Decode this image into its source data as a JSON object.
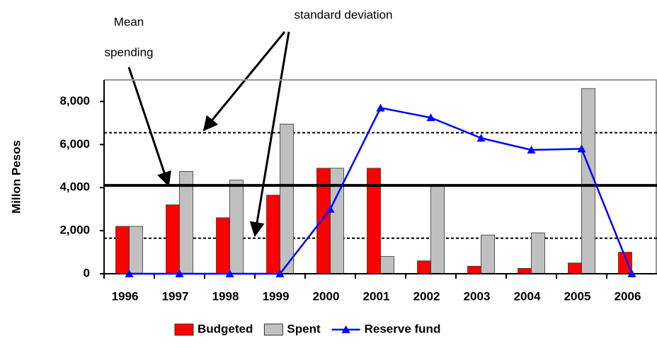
{
  "chart_data": {
    "type": "bar",
    "y_label": "Millon Pesos",
    "categories": [
      "1996",
      "1997",
      "1998",
      "1999",
      "2000",
      "2001",
      "2002",
      "2003",
      "2004",
      "2005",
      "2006"
    ],
    "series": [
      {
        "name": "Budgeted",
        "color": "#ff0000",
        "values": [
          2200,
          3200,
          2600,
          3650,
          4900,
          4900,
          600,
          350,
          250,
          500,
          1000
        ]
      },
      {
        "name": "Spent",
        "color": "#c0c0c0",
        "values": [
          2200,
          4750,
          4350,
          6950,
          4900,
          800,
          4100,
          1800,
          1900,
          8600,
          null
        ]
      },
      {
        "name": "Reserve fund",
        "color": "#0000ff",
        "type": "line",
        "values": [
          0,
          0,
          0,
          0,
          3000,
          7700,
          7250,
          6300,
          5750,
          5800,
          0
        ]
      }
    ],
    "ylim": [
      0,
      9000
    ],
    "yticks": [
      0,
      {
        "value": 2000,
        "label": "2,000"
      },
      {
        "value": 4000,
        "label": "4,000"
      },
      {
        "value": 6000,
        "label": "6,000"
      },
      {
        "value": 8000,
        "label": "8,000"
      }
    ],
    "annotations": {
      "mean": {
        "text": [
          "Mean",
          "spending"
        ],
        "value": 4100
      },
      "sd": {
        "text": "standard deviation",
        "values": [
          1650,
          6550
        ]
      }
    },
    "legend": "bottom"
  }
}
